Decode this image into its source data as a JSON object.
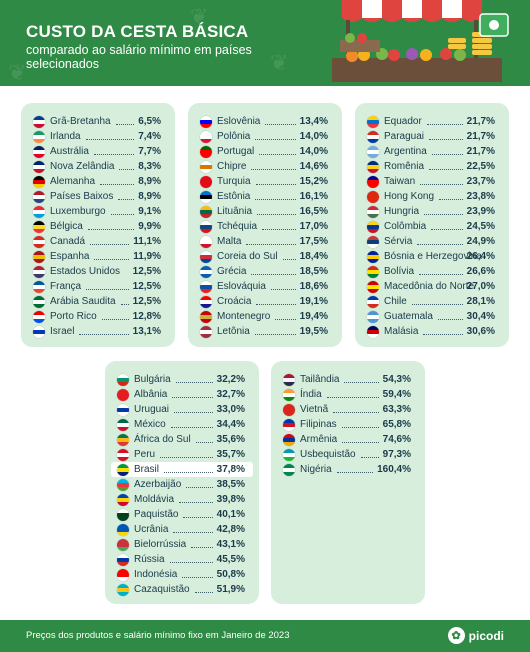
{
  "header": {
    "title": "CUSTO DA CESTA BÁSICA",
    "subtitle": "comparado ao salário mínimo em países selecionados"
  },
  "colors": {
    "brand_green": "#2f8a45",
    "panel_green": "#d7eedc",
    "text_navy": "#1a3a4a"
  },
  "panels": [
    {
      "rows": [
        {
          "name": "Grã-Bretanha",
          "value": "6,5%",
          "flag": [
            "#0b3c8c",
            "#ffffff",
            "#c8102e"
          ]
        },
        {
          "name": "Irlanda",
          "value": "7,4%",
          "flag": [
            "#169b62",
            "#ffffff",
            "#ff883e"
          ]
        },
        {
          "name": "Austrália",
          "value": "7,7%",
          "flag": [
            "#012169",
            "#ffffff",
            "#e4002b"
          ]
        },
        {
          "name": "Nova Zelândia",
          "value": "8,3%",
          "flag": [
            "#012169",
            "#ffffff",
            "#c8102e"
          ]
        },
        {
          "name": "Alemanha",
          "value": "8,9%",
          "flag": [
            "#000000",
            "#dd0000",
            "#ffce00"
          ]
        },
        {
          "name": "Países Baixos",
          "value": "8,9%",
          "flag": [
            "#ae1c28",
            "#ffffff",
            "#21468b"
          ]
        },
        {
          "name": "Luxemburgo",
          "value": "9,1%",
          "flag": [
            "#ed2939",
            "#ffffff",
            "#00a1de"
          ]
        },
        {
          "name": "Bélgica",
          "value": "9,9%",
          "flag": [
            "#000000",
            "#fdda24",
            "#ef3340"
          ]
        },
        {
          "name": "Canadá",
          "value": "11,1%",
          "flag": [
            "#d52b1e",
            "#ffffff",
            "#d52b1e"
          ]
        },
        {
          "name": "Espanha",
          "value": "11,9%",
          "flag": [
            "#aa151b",
            "#f1bf00",
            "#aa151b"
          ]
        },
        {
          "name": "Estados Unidos",
          "value": "12,5%",
          "flag": [
            "#b22234",
            "#ffffff",
            "#3c3b6e"
          ]
        },
        {
          "name": "França",
          "value": "12,5%",
          "flag": [
            "#0055a4",
            "#ffffff",
            "#ef4135"
          ]
        },
        {
          "name": "Arábia Saudita",
          "value": "12,5%",
          "flag": [
            "#006c35",
            "#ffffff",
            "#006c35"
          ]
        },
        {
          "name": "Porto Rico",
          "value": "12,8%",
          "flag": [
            "#ed0000",
            "#ffffff",
            "#0050f0"
          ]
        },
        {
          "name": "Israel",
          "value": "13,1%",
          "flag": [
            "#ffffff",
            "#0038b8",
            "#ffffff"
          ]
        }
      ]
    },
    {
      "rows": [
        {
          "name": "Eslovênia",
          "value": "13,4%",
          "flag": [
            "#ffffff",
            "#0000ff",
            "#ff0000"
          ]
        },
        {
          "name": "Polônia",
          "value": "14,0%",
          "flag": [
            "#ffffff",
            "#ffffff",
            "#dc143c"
          ]
        },
        {
          "name": "Portugal",
          "value": "14,0%",
          "flag": [
            "#006600",
            "#ff0000",
            "#ff0000"
          ]
        },
        {
          "name": "Chipre",
          "value": "14,6%",
          "flag": [
            "#ffffff",
            "#d57800",
            "#ffffff"
          ]
        },
        {
          "name": "Turquia",
          "value": "15,2%",
          "flag": [
            "#e30a17",
            "#e30a17",
            "#e30a17"
          ]
        },
        {
          "name": "Estônia",
          "value": "16,1%",
          "flag": [
            "#0072ce",
            "#000000",
            "#ffffff"
          ]
        },
        {
          "name": "Lituânia",
          "value": "16,5%",
          "flag": [
            "#fdb913",
            "#006a44",
            "#c1272d"
          ]
        },
        {
          "name": "Tchéquia",
          "value": "17,0%",
          "flag": [
            "#ffffff",
            "#11457e",
            "#d7141a"
          ]
        },
        {
          "name": "Malta",
          "value": "17,5%",
          "flag": [
            "#ffffff",
            "#ffffff",
            "#cf142b"
          ]
        },
        {
          "name": "Coreia do Sul",
          "value": "18,4%",
          "flag": [
            "#ffffff",
            "#cd2e3a",
            "#0047a0"
          ]
        },
        {
          "name": "Grécia",
          "value": "18,5%",
          "flag": [
            "#0d5eaf",
            "#ffffff",
            "#0d5eaf"
          ]
        },
        {
          "name": "Eslováquia",
          "value": "18,6%",
          "flag": [
            "#ffffff",
            "#0b4ea2",
            "#ee1c25"
          ]
        },
        {
          "name": "Croácia",
          "value": "19,1%",
          "flag": [
            "#ff0000",
            "#ffffff",
            "#171796"
          ]
        },
        {
          "name": "Montenegro",
          "value": "19,4%",
          "flag": [
            "#c40308",
            "#d4af37",
            "#c40308"
          ]
        },
        {
          "name": "Letônia",
          "value": "19,5%",
          "flag": [
            "#9e3039",
            "#ffffff",
            "#9e3039"
          ]
        }
      ]
    },
    {
      "rows": [
        {
          "name": "Equador",
          "value": "21,7%",
          "flag": [
            "#ffd100",
            "#0072ce",
            "#ef3340"
          ]
        },
        {
          "name": "Paraguai",
          "value": "21,7%",
          "flag": [
            "#d52b1e",
            "#ffffff",
            "#0038a8"
          ]
        },
        {
          "name": "Argentina",
          "value": "21,7%",
          "flag": [
            "#74acdf",
            "#ffffff",
            "#74acdf"
          ]
        },
        {
          "name": "Romênia",
          "value": "22,5%",
          "flag": [
            "#002b7f",
            "#fcd116",
            "#ce1126"
          ]
        },
        {
          "name": "Taiwan",
          "value": "23,7%",
          "flag": [
            "#000095",
            "#fe0000",
            "#fe0000"
          ]
        },
        {
          "name": "Hong Kong",
          "value": "23,8%",
          "flag": [
            "#de2910",
            "#de2910",
            "#de2910"
          ]
        },
        {
          "name": "Hungria",
          "value": "23,9%",
          "flag": [
            "#ce2939",
            "#ffffff",
            "#477050"
          ]
        },
        {
          "name": "Colômbia",
          "value": "24,5%",
          "flag": [
            "#fcd116",
            "#003893",
            "#ce1126"
          ]
        },
        {
          "name": "Sérvia",
          "value": "24,9%",
          "flag": [
            "#c6363c",
            "#0c4076",
            "#ffffff"
          ]
        },
        {
          "name": "Bósnia e Herzegovina",
          "value": "26,4%",
          "flag": [
            "#002395",
            "#fecb00",
            "#002395"
          ]
        },
        {
          "name": "Bolívia",
          "value": "26,6%",
          "flag": [
            "#d52b1e",
            "#f9e300",
            "#007934"
          ]
        },
        {
          "name": "Macedônia do Norte",
          "value": "27,0%",
          "flag": [
            "#d20000",
            "#ffe600",
            "#d20000"
          ]
        },
        {
          "name": "Chile",
          "value": "28,1%",
          "flag": [
            "#0039a6",
            "#ffffff",
            "#d52b1e"
          ]
        },
        {
          "name": "Guatemala",
          "value": "30,4%",
          "flag": [
            "#4997d0",
            "#ffffff",
            "#4997d0"
          ]
        },
        {
          "name": "Malásia",
          "value": "30,6%",
          "flag": [
            "#010066",
            "#cc0001",
            "#ffffff"
          ]
        }
      ]
    },
    {
      "rows": [
        {
          "name": "Bulgária",
          "value": "32,2%",
          "flag": [
            "#ffffff",
            "#00966e",
            "#d62612"
          ]
        },
        {
          "name": "Albânia",
          "value": "32,7%",
          "flag": [
            "#e41e20",
            "#e41e20",
            "#e41e20"
          ]
        },
        {
          "name": "Uruguai",
          "value": "33,0%",
          "flag": [
            "#ffffff",
            "#0038a8",
            "#ffffff"
          ]
        },
        {
          "name": "México",
          "value": "34,4%",
          "flag": [
            "#006847",
            "#ffffff",
            "#ce1126"
          ]
        },
        {
          "name": "África do Sul",
          "value": "35,6%",
          "flag": [
            "#007a4d",
            "#ffb612",
            "#de3831"
          ]
        },
        {
          "name": "Peru",
          "value": "35,7%",
          "flag": [
            "#d91023",
            "#ffffff",
            "#d91023"
          ]
        },
        {
          "name": "Brasil",
          "value": "37,8%",
          "flag": [
            "#009c3b",
            "#ffdf00",
            "#002776"
          ],
          "highlight": true
        },
        {
          "name": "Azerbaijão",
          "value": "38,5%",
          "flag": [
            "#00b5e2",
            "#ef3340",
            "#509e2f"
          ]
        },
        {
          "name": "Moldávia",
          "value": "39,8%",
          "flag": [
            "#0046ae",
            "#ffd200",
            "#cc092f"
          ]
        },
        {
          "name": "Paquistão",
          "value": "40,1%",
          "flag": [
            "#ffffff",
            "#01411c",
            "#01411c"
          ]
        },
        {
          "name": "Ucrânia",
          "value": "42,8%",
          "flag": [
            "#0057b7",
            "#0057b7",
            "#ffd700"
          ]
        },
        {
          "name": "Bielorrússia",
          "value": "43,1%",
          "flag": [
            "#c8313e",
            "#c8313e",
            "#4aa657"
          ]
        },
        {
          "name": "Rússia",
          "value": "45,5%",
          "flag": [
            "#ffffff",
            "#0039a6",
            "#d52b1e"
          ]
        },
        {
          "name": "Indonésia",
          "value": "50,8%",
          "flag": [
            "#ff0000",
            "#ff0000",
            "#ffffff"
          ]
        },
        {
          "name": "Cazaquistão",
          "value": "51,9%",
          "flag": [
            "#00afca",
            "#fec50c",
            "#00afca"
          ]
        }
      ]
    },
    {
      "rows": [
        {
          "name": "Tailândia",
          "value": "54,3%",
          "flag": [
            "#a51931",
            "#f4f5f8",
            "#2d2a4a"
          ]
        },
        {
          "name": "Índia",
          "value": "59,4%",
          "flag": [
            "#ff9933",
            "#ffffff",
            "#138808"
          ]
        },
        {
          "name": "Vietnã",
          "value": "63,3%",
          "flag": [
            "#da251d",
            "#da251d",
            "#da251d"
          ]
        },
        {
          "name": "Filipinas",
          "value": "65,8%",
          "flag": [
            "#0038a8",
            "#ce1126",
            "#ffffff"
          ]
        },
        {
          "name": "Armênia",
          "value": "74,6%",
          "flag": [
            "#d90012",
            "#0033a0",
            "#f2a800"
          ]
        },
        {
          "name": "Usbequistão",
          "value": "97,3%",
          "flag": [
            "#0099b5",
            "#ffffff",
            "#1eb53a"
          ]
        },
        {
          "name": "Nigéria",
          "value": "160,4%",
          "flag": [
            "#008751",
            "#ffffff",
            "#008751"
          ]
        }
      ]
    }
  ],
  "footer": {
    "note": "Preços dos produtos e salário mínimo fixo em Janeiro de 2023",
    "brand": "picodi"
  }
}
